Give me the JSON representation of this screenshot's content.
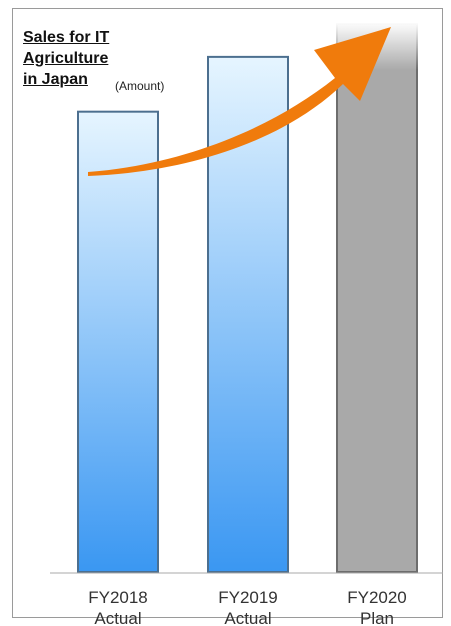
{
  "chart_data": {
    "type": "bar",
    "title_lines": [
      "Sales for IT",
      "Agriculture",
      "in Japan"
    ],
    "unit_label": "(Amount)",
    "categories": [
      {
        "line1": "FY2018",
        "line2": "Actual"
      },
      {
        "line1": "FY2019",
        "line2": "Actual"
      },
      {
        "line1": "FY2020",
        "line2": "Plan"
      }
    ],
    "values": [
      0.84,
      0.94,
      1.0
    ],
    "value_scale": "relative (no numeric axis shown)",
    "bar_styles": [
      "actual",
      "actual",
      "plan"
    ],
    "trend_arrow": true,
    "grid": false,
    "legend": "none"
  },
  "colors": {
    "actual_top": "#e6f5ff",
    "actual_bottom": "#3a97f2",
    "actual_edge": "#4c6f8f",
    "plan_fill": "#a9a9a9",
    "plan_edge": "#6d6d6d",
    "arrow": "#f07b0c",
    "baseline": "#aaaaaa"
  }
}
